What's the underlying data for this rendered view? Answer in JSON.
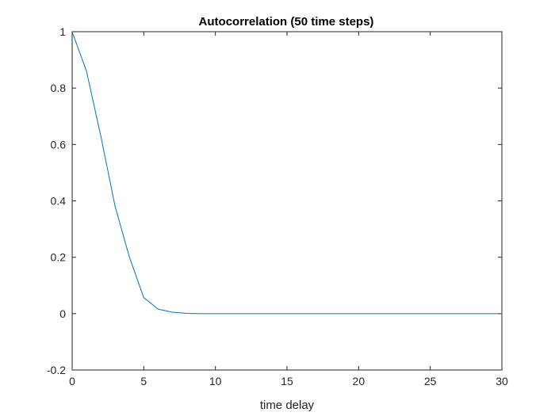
{
  "chart_data": {
    "type": "line",
    "title": "Autocorrelation (50 time steps)",
    "xlabel": "time delay",
    "ylabel": "",
    "xlim": [
      0,
      30
    ],
    "ylim": [
      -0.2,
      1
    ],
    "xticks": [
      0,
      5,
      10,
      15,
      20,
      25,
      30
    ],
    "xtick_labels": [
      "0",
      "5",
      "10",
      "15",
      "20",
      "25",
      "30"
    ],
    "yticks": [
      -0.2,
      0,
      0.2,
      0.4,
      0.6,
      0.8,
      1
    ],
    "ytick_labels": [
      "-0.2",
      "0",
      "0.2",
      "0.4",
      "0.6",
      "0.8",
      "1"
    ],
    "grid": false,
    "box": true,
    "series": [
      {
        "color": "#0072BD",
        "x": [
          0,
          1,
          2,
          3,
          4,
          5,
          6,
          7,
          8,
          9,
          10,
          11,
          12,
          13,
          14,
          15,
          16,
          17,
          18,
          19,
          20,
          21,
          22,
          23,
          24,
          25,
          26,
          27,
          28,
          29,
          30
        ],
        "y": [
          1,
          0.86,
          0.63,
          0.38,
          0.2,
          0.057,
          0.016,
          0.005,
          0.001,
          0,
          0,
          0,
          0,
          0,
          0,
          0,
          0,
          0,
          0,
          0,
          0,
          0,
          0,
          0,
          0,
          0,
          0,
          0,
          0,
          0,
          0
        ]
      }
    ]
  }
}
